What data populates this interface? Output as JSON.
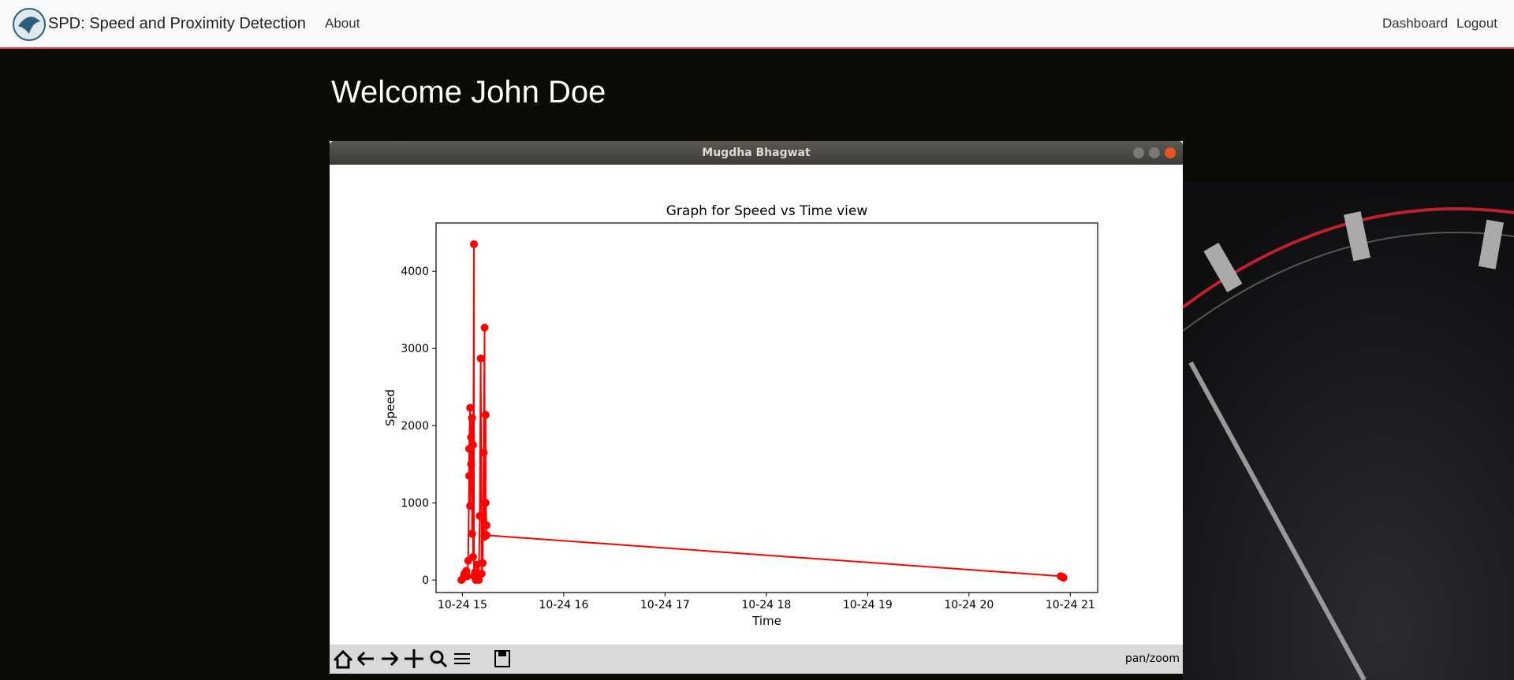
{
  "navbar": {
    "brand": "SPD: Speed and Proximity Detection",
    "links": [
      "About"
    ],
    "right_links": [
      "Dashboard",
      "Logout"
    ]
  },
  "welcome": "Welcome John Doe",
  "window": {
    "title": "Mugdha Bhagwat",
    "status": "pan/zoom"
  },
  "chart_data": {
    "type": "line",
    "title": "Graph for Speed vs Time view",
    "x_label": "Time",
    "y_label": "Speed",
    "color": "#ff0000",
    "x": [
      14.99,
      15.01,
      15.019,
      15.038,
      15.048,
      15.057,
      15.067,
      15.067,
      15.076,
      15.076,
      15.086,
      15.086,
      15.095,
      15.095,
      15.105,
      15.105,
      15.114,
      15.114,
      15.124,
      15.133,
      15.143,
      15.152,
      15.162,
      15.171,
      15.181,
      15.19,
      15.2,
      15.21,
      15.219,
      15.219,
      15.229,
      15.229,
      15.238,
      15.238,
      20.905,
      20.924,
      20.933
    ],
    "series": [
      {
        "name": "Speed",
        "color": "#ff0000",
        "values": [
          0,
          30,
          80,
          120,
          50,
          250,
          1350,
          1700,
          2230,
          960,
          1500,
          1850,
          2100,
          600,
          1750,
          300,
          4350,
          50,
          100,
          0,
          200,
          50,
          0,
          830,
          2870,
          80,
          220,
          1650,
          3270,
          560,
          2140,
          1000,
          710,
          580,
          50,
          40,
          30
        ]
      }
    ],
    "xlim": [
      14.74,
      21.27
    ],
    "ylim": [
      -162,
      4625
    ],
    "xticks": [
      {
        "value": 15,
        "label": "10-24 15"
      },
      {
        "value": 16,
        "label": "10-24 16"
      },
      {
        "value": 17,
        "label": "10-24 17"
      },
      {
        "value": 18,
        "label": "10-24 18"
      },
      {
        "value": 19,
        "label": "10-24 19"
      },
      {
        "value": 20,
        "label": "10-24 20"
      },
      {
        "value": 21,
        "label": "10-24 21"
      }
    ],
    "yticks": [
      0,
      1000,
      2000,
      3000,
      4000
    ],
    "grid": false
  }
}
